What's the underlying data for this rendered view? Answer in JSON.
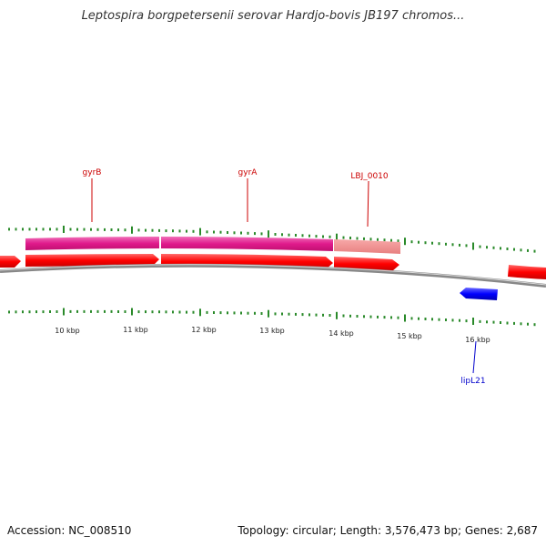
{
  "title": "Leptospira borgpetersenii serovar Hardjo-bovis JB197 chromos...",
  "footer": {
    "accession": "Accession: NC_008510",
    "summary": "Topology: circular; Length: 3,576,473 bp; Genes: 2,687"
  },
  "colors": {
    "forward_gene": "#ff1a1a",
    "reverse_gene": "#1a1aff",
    "protein_feature": "#e6338c",
    "feature_faded": "#f08080",
    "tick": "#2a8a2a",
    "backbone": "#888888",
    "forward_label": "#cc0000",
    "reverse_label": "#0000cc"
  },
  "ticks": {
    "labels": [
      "10 kbp",
      "11 kbp",
      "12 kbp",
      "13 kbp",
      "14 kbp",
      "15 kbp",
      "16 kbp"
    ]
  },
  "genes": [
    {
      "name": "gyrB",
      "strand": "+",
      "color": "forward_label"
    },
    {
      "name": "gyrA",
      "strand": "+",
      "color": "forward_label"
    },
    {
      "name": "LBJ_0010",
      "strand": "+",
      "color": "forward_label"
    },
    {
      "name": "lipL21",
      "strand": "-",
      "color": "reverse_label"
    }
  ]
}
